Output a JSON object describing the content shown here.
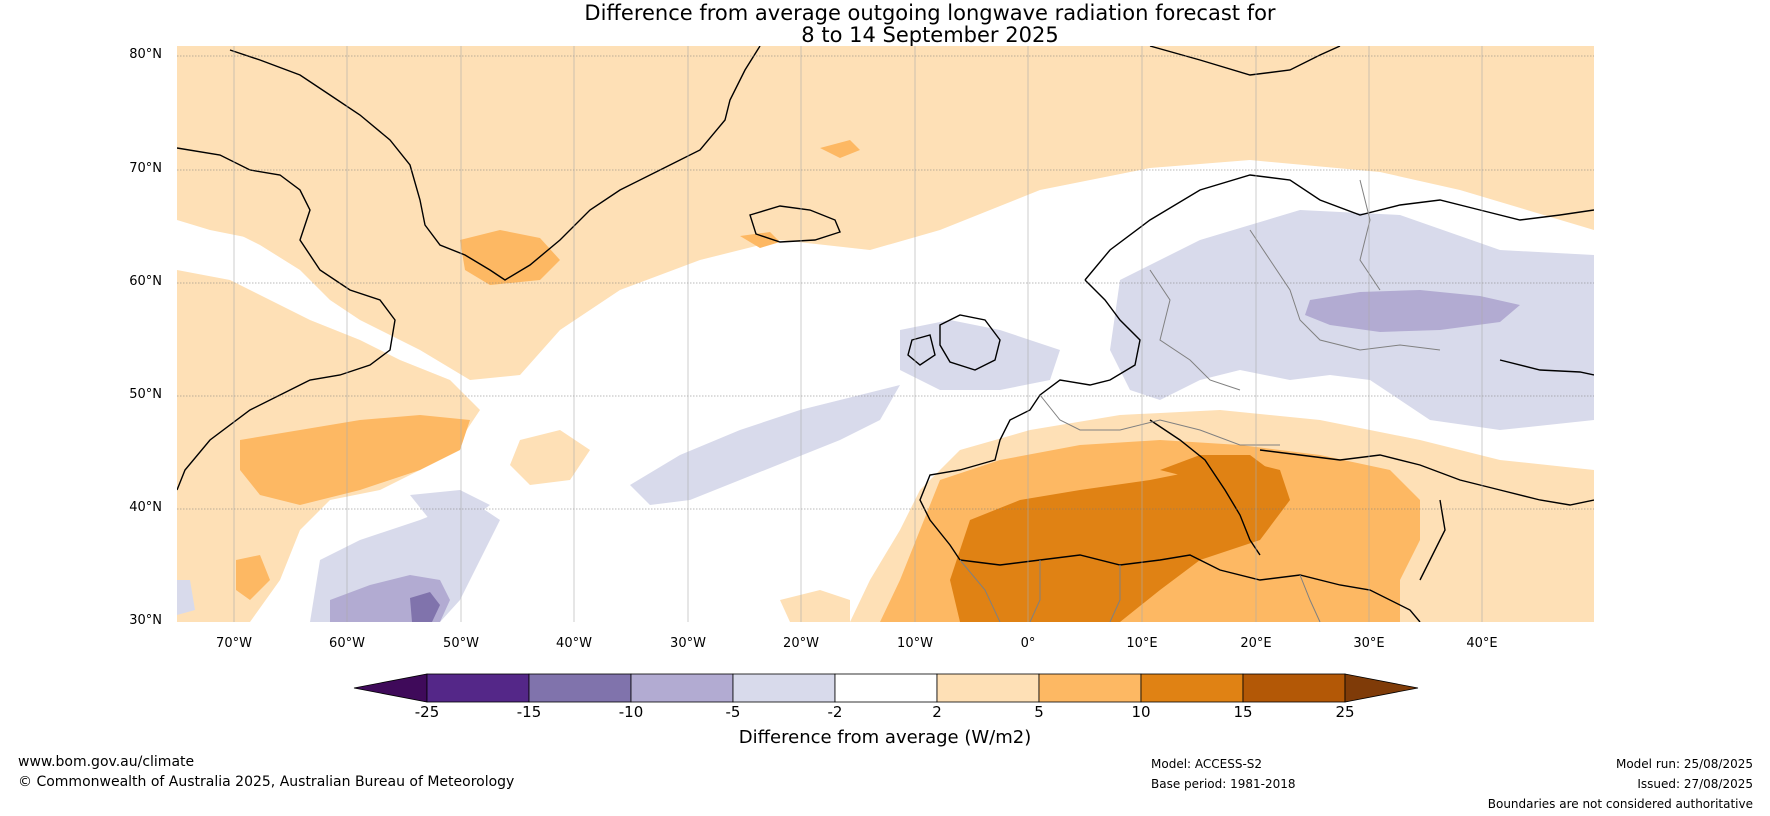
{
  "title": {
    "line1": "Difference from average outgoing longwave radiation forecast for",
    "line2": "8 to 14 September 2025"
  },
  "axes": {
    "lat_labels": [
      "80°N",
      "70°N",
      "60°N",
      "50°N",
      "40°N",
      "30°N"
    ],
    "lon_labels": [
      "70°W",
      "60°W",
      "50°W",
      "40°W",
      "30°W",
      "20°W",
      "10°W",
      "0°",
      "10°E",
      "20°E",
      "30°E",
      "40°E"
    ]
  },
  "colorbar": {
    "title": "Difference from average (W/m2)",
    "ticks": [
      "-25",
      "-15",
      "-10",
      "-5",
      "-2",
      "2",
      "5",
      "10",
      "15",
      "25"
    ],
    "colors": [
      "#3f0a5a",
      "#542788",
      "#8073ac",
      "#b2abd2",
      "#d8daeb",
      "#ffffff",
      "#fee0b6",
      "#fdb863",
      "#e08214",
      "#b35806",
      "#7f3b08"
    ]
  },
  "footer": {
    "website": "www.bom.gov.au/climate",
    "copyright": "© Commonwealth of Australia 2025, Australian Bureau of Meteorology",
    "model": "Model: ACCESS-S2",
    "base_period": "Base period: 1981-2018",
    "model_run": "Model run: 25/08/2025",
    "issued": "Issued: 27/08/2025",
    "disclaimer": "Boundaries are not considered authoritative"
  }
}
